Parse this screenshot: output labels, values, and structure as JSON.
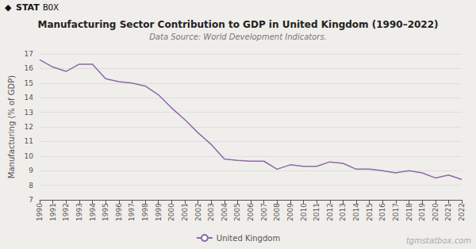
{
  "chart_data": {
    "type": "line",
    "title": "Manufacturing Sector Contribution to GDP in United Kingdom (1990–2022)",
    "subtitle": "Data Source: World Development Indicators.",
    "ylabel": "Manufacturing (% of GDP)",
    "annotations": [
      "◆",
      "STAT",
      "BOX",
      "tgmstatbox.com"
    ],
    "x": [
      1990,
      1991,
      1992,
      1993,
      1994,
      1995,
      1996,
      1997,
      1998,
      1999,
      2000,
      2001,
      2002,
      2003,
      2004,
      2005,
      2006,
      2007,
      2008,
      2009,
      2010,
      2011,
      2012,
      2013,
      2014,
      2015,
      2016,
      2017,
      2018,
      2019,
      2020,
      2021,
      2022
    ],
    "series": [
      {
        "name": "United Kingdom",
        "color": "#8b6aad",
        "values": [
          16.6,
          16.1,
          15.8,
          16.3,
          16.3,
          15.3,
          15.1,
          15.0,
          14.8,
          14.2,
          13.3,
          12.5,
          11.6,
          10.8,
          9.8,
          9.7,
          9.65,
          9.65,
          9.1,
          9.4,
          9.3,
          9.3,
          9.6,
          9.5,
          9.1,
          9.1,
          9.0,
          8.85,
          9.0,
          8.85,
          8.5,
          8.7,
          8.4
        ]
      }
    ],
    "xlim": [
      1990,
      2022
    ],
    "xticks": [
      1990,
      1991,
      1992,
      1993,
      1994,
      1995,
      1996,
      1997,
      1998,
      1999,
      2000,
      2001,
      2002,
      2003,
      2004,
      2005,
      2006,
      2007,
      2008,
      2009,
      2010,
      2011,
      2012,
      2013,
      2014,
      2015,
      2016,
      2017,
      2018,
      2019,
      2020,
      2021,
      2022
    ],
    "ylim": [
      7,
      17
    ],
    "yticks": [
      7,
      8,
      9,
      10,
      11,
      12,
      13,
      14,
      15,
      16,
      17
    ],
    "grid": true,
    "legend": "bottom"
  }
}
